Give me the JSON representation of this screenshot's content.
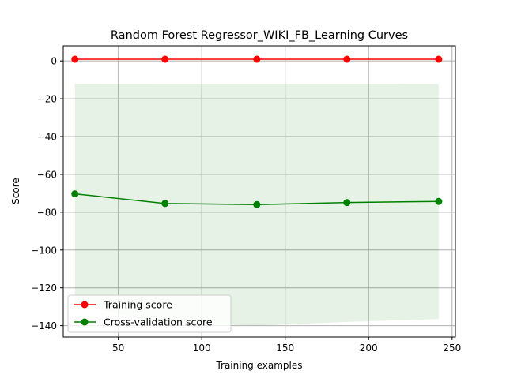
{
  "chart_data": {
    "type": "line",
    "title": "Random Forest Regressor_WIKI_FB_Learning Curves",
    "xlabel": "Training examples",
    "ylabel": "Score",
    "xlim": [
      17,
      252
    ],
    "ylim": [
      -146,
      8
    ],
    "xticks": [
      50,
      100,
      150,
      200,
      250
    ],
    "yticks": [
      0,
      -20,
      -40,
      -60,
      -80,
      -100,
      -120,
      -140
    ],
    "grid": true,
    "legend_position": "lower-left",
    "x": [
      24,
      78,
      133,
      187,
      242
    ],
    "series": [
      {
        "name": "Training score",
        "color": "#ff0000",
        "values": [
          0.9,
          0.9,
          0.9,
          0.9,
          0.9
        ],
        "band_lower": [
          0.7,
          0.7,
          0.7,
          0.7,
          0.7
        ],
        "band_upper": [
          1.1,
          1.1,
          1.1,
          1.1,
          1.1
        ],
        "band_color": "#ff0000"
      },
      {
        "name": "Cross-validation score",
        "color": "#008000",
        "values": [
          -70.3,
          -75.4,
          -76.0,
          -74.9,
          -74.3
        ],
        "band_lower": [
          -128.5,
          -139.0,
          -140.0,
          -138.0,
          -136.5
        ],
        "band_upper": [
          -12.0,
          -12.1,
          -12.1,
          -12.1,
          -12.2
        ],
        "band_color": "#008000"
      }
    ]
  }
}
